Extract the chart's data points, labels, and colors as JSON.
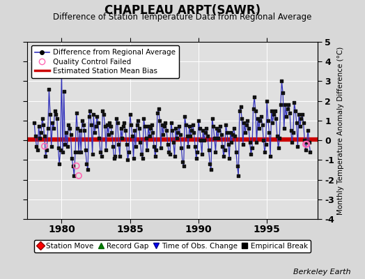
{
  "title": "CHAPLEAU ARPT(SAWR)",
  "subtitle": "Difference of Station Temperature Data from Regional Average",
  "ylabel_right": "Monthly Temperature Anomaly Difference (°C)",
  "watermark": "Berkeley Earth",
  "bias_value": 0.05,
  "ylim": [
    -4,
    5
  ],
  "xlim": [
    1977.5,
    1998.7
  ],
  "xticks": [
    1980,
    1985,
    1990,
    1995
  ],
  "yticks_right": [
    -4,
    -3,
    -2,
    -1,
    0,
    1,
    2,
    3,
    4,
    5
  ],
  "bg_color": "#d8d8d8",
  "plot_bg_color": "#e0e0e0",
  "line_color": "#3333bb",
  "dot_color": "#111111",
  "bias_color": "#cc0000",
  "qc_color": "#ff69b4",
  "grid_color": "#ffffff",
  "data": [
    [
      1978.0,
      0.9
    ],
    [
      1978.083,
      0.2
    ],
    [
      1978.167,
      -0.3
    ],
    [
      1978.25,
      -0.5
    ],
    [
      1978.333,
      0.7
    ],
    [
      1978.417,
      0.1
    ],
    [
      1978.5,
      0.4
    ],
    [
      1978.583,
      1.1
    ],
    [
      1978.667,
      0.8
    ],
    [
      1978.75,
      0.2
    ],
    [
      1978.833,
      -0.8
    ],
    [
      1978.917,
      -0.5
    ],
    [
      1979.0,
      0.6
    ],
    [
      1979.083,
      2.6
    ],
    [
      1979.167,
      1.3
    ],
    [
      1979.25,
      -0.3
    ],
    [
      1979.333,
      0.9
    ],
    [
      1979.417,
      0.6
    ],
    [
      1979.5,
      1.5
    ],
    [
      1979.583,
      1.3
    ],
    [
      1979.667,
      1.1
    ],
    [
      1979.75,
      -0.4
    ],
    [
      1979.833,
      -1.2
    ],
    [
      1979.917,
      -0.5
    ],
    [
      1980.0,
      3.5
    ],
    [
      1980.083,
      -0.6
    ],
    [
      1980.167,
      2.5
    ],
    [
      1980.25,
      -0.2
    ],
    [
      1980.333,
      0.4
    ],
    [
      1980.417,
      -0.3
    ],
    [
      1980.5,
      0.8
    ],
    [
      1980.583,
      0.6
    ],
    [
      1980.667,
      0.3
    ],
    [
      1980.75,
      -0.9
    ],
    [
      1980.833,
      -1.3
    ],
    [
      1980.917,
      -1.8
    ],
    [
      1981.0,
      -0.6
    ],
    [
      1981.083,
      1.4
    ],
    [
      1981.167,
      0.6
    ],
    [
      1981.25,
      -0.6
    ],
    [
      1981.333,
      0.5
    ],
    [
      1981.417,
      -0.6
    ],
    [
      1981.5,
      1.0
    ],
    [
      1981.583,
      0.8
    ],
    [
      1981.667,
      0.5
    ],
    [
      1981.75,
      -0.5
    ],
    [
      1981.833,
      -1.2
    ],
    [
      1981.917,
      -1.5
    ],
    [
      1982.0,
      1.2
    ],
    [
      1982.083,
      1.5
    ],
    [
      1982.167,
      0.8
    ],
    [
      1982.25,
      -0.7
    ],
    [
      1982.333,
      1.3
    ],
    [
      1982.417,
      0.4
    ],
    [
      1982.5,
      0.7
    ],
    [
      1982.583,
      1.2
    ],
    [
      1982.667,
      0.9
    ],
    [
      1982.75,
      0.1
    ],
    [
      1982.833,
      -0.6
    ],
    [
      1982.917,
      -0.8
    ],
    [
      1983.0,
      1.5
    ],
    [
      1983.083,
      1.3
    ],
    [
      1983.167,
      0.7
    ],
    [
      1983.25,
      -0.5
    ],
    [
      1983.333,
      0.8
    ],
    [
      1983.417,
      0.3
    ],
    [
      1983.5,
      0.9
    ],
    [
      1983.583,
      0.7
    ],
    [
      1983.667,
      0.4
    ],
    [
      1983.75,
      -0.3
    ],
    [
      1983.833,
      -0.9
    ],
    [
      1983.917,
      -0.8
    ],
    [
      1984.0,
      1.1
    ],
    [
      1984.083,
      0.9
    ],
    [
      1984.167,
      -0.2
    ],
    [
      1984.25,
      -0.8
    ],
    [
      1984.333,
      0.6
    ],
    [
      1984.417,
      0.1
    ],
    [
      1984.5,
      0.7
    ],
    [
      1984.583,
      0.9
    ],
    [
      1984.667,
      0.5
    ],
    [
      1984.75,
      -0.2
    ],
    [
      1984.833,
      -1.0
    ],
    [
      1984.917,
      -0.6
    ],
    [
      1985.0,
      1.3
    ],
    [
      1985.083,
      0.8
    ],
    [
      1985.167,
      0.2
    ],
    [
      1985.25,
      -0.9
    ],
    [
      1985.333,
      0.5
    ],
    [
      1985.417,
      -0.3
    ],
    [
      1985.5,
      0.8
    ],
    [
      1985.583,
      1.0
    ],
    [
      1985.667,
      0.6
    ],
    [
      1985.75,
      -0.1
    ],
    [
      1985.833,
      -0.7
    ],
    [
      1985.917,
      -0.9
    ],
    [
      1986.0,
      1.1
    ],
    [
      1986.083,
      0.7
    ],
    [
      1986.167,
      0.1
    ],
    [
      1986.25,
      -0.5
    ],
    [
      1986.333,
      0.7
    ],
    [
      1986.417,
      0.2
    ],
    [
      1986.5,
      0.6
    ],
    [
      1986.583,
      0.8
    ],
    [
      1986.667,
      0.4
    ],
    [
      1986.75,
      -0.3
    ],
    [
      1986.833,
      -0.8
    ],
    [
      1986.917,
      -0.5
    ],
    [
      1987.0,
      1.4
    ],
    [
      1987.083,
      1.6
    ],
    [
      1987.167,
      1.0
    ],
    [
      1987.25,
      -0.4
    ],
    [
      1987.333,
      0.8
    ],
    [
      1987.417,
      0.3
    ],
    [
      1987.5,
      0.7
    ],
    [
      1987.583,
      0.9
    ],
    [
      1987.667,
      0.5
    ],
    [
      1987.75,
      -0.2
    ],
    [
      1987.833,
      -0.6
    ],
    [
      1987.917,
      -0.7
    ],
    [
      1988.0,
      0.9
    ],
    [
      1988.083,
      0.5
    ],
    [
      1988.167,
      -0.1
    ],
    [
      1988.25,
      -0.8
    ],
    [
      1988.333,
      0.6
    ],
    [
      1988.417,
      0.1
    ],
    [
      1988.5,
      0.4
    ],
    [
      1988.583,
      0.7
    ],
    [
      1988.667,
      0.3
    ],
    [
      1988.75,
      -0.4
    ],
    [
      1988.833,
      -1.1
    ],
    [
      1988.917,
      -1.3
    ],
    [
      1989.0,
      1.2
    ],
    [
      1989.083,
      0.8
    ],
    [
      1989.167,
      0.2
    ],
    [
      1989.25,
      -0.3
    ],
    [
      1989.333,
      0.7
    ],
    [
      1989.417,
      0.2
    ],
    [
      1989.5,
      0.5
    ],
    [
      1989.583,
      0.8
    ],
    [
      1989.667,
      0.4
    ],
    [
      1989.75,
      -0.3
    ],
    [
      1989.833,
      -0.9
    ],
    [
      1989.917,
      -0.6
    ],
    [
      1990.0,
      1.0
    ],
    [
      1990.083,
      0.6
    ],
    [
      1990.167,
      0.0
    ],
    [
      1990.25,
      -0.7
    ],
    [
      1990.333,
      0.5
    ],
    [
      1990.417,
      0.0
    ],
    [
      1990.5,
      0.4
    ],
    [
      1990.583,
      0.6
    ],
    [
      1990.667,
      0.2
    ],
    [
      1990.75,
      -0.5
    ],
    [
      1990.833,
      -1.2
    ],
    [
      1990.917,
      -1.5
    ],
    [
      1991.0,
      1.1
    ],
    [
      1991.083,
      0.7
    ],
    [
      1991.167,
      0.1
    ],
    [
      1991.25,
      -0.6
    ],
    [
      1991.333,
      0.6
    ],
    [
      1991.417,
      0.1
    ],
    [
      1991.5,
      0.5
    ],
    [
      1991.583,
      0.7
    ],
    [
      1991.667,
      0.3
    ],
    [
      1991.75,
      -0.3
    ],
    [
      1991.833,
      -0.8
    ],
    [
      1991.917,
      -0.5
    ],
    [
      1992.0,
      0.8
    ],
    [
      1992.083,
      0.4
    ],
    [
      1992.167,
      -0.2
    ],
    [
      1992.25,
      -0.9
    ],
    [
      1992.333,
      0.4
    ],
    [
      1992.417,
      -0.1
    ],
    [
      1992.5,
      0.3
    ],
    [
      1992.583,
      0.6
    ],
    [
      1992.667,
      0.2
    ],
    [
      1992.75,
      -0.6
    ],
    [
      1992.833,
      -1.3
    ],
    [
      1992.917,
      -1.8
    ],
    [
      1993.0,
      1.5
    ],
    [
      1993.083,
      1.7
    ],
    [
      1993.167,
      1.1
    ],
    [
      1993.25,
      -0.2
    ],
    [
      1993.333,
      0.9
    ],
    [
      1993.417,
      0.4
    ],
    [
      1993.5,
      0.8
    ],
    [
      1993.583,
      1.0
    ],
    [
      1993.667,
      0.6
    ],
    [
      1993.75,
      -0.1
    ],
    [
      1993.833,
      -0.7
    ],
    [
      1993.917,
      -0.4
    ],
    [
      1994.0,
      1.6
    ],
    [
      1994.083,
      2.2
    ],
    [
      1994.167,
      1.5
    ],
    [
      1994.25,
      -0.1
    ],
    [
      1994.333,
      1.1
    ],
    [
      1994.417,
      0.6
    ],
    [
      1994.5,
      1.0
    ],
    [
      1994.583,
      1.2
    ],
    [
      1994.667,
      0.8
    ],
    [
      1994.75,
      0.0
    ],
    [
      1994.833,
      -0.6
    ],
    [
      1994.917,
      -0.2
    ],
    [
      1995.0,
      2.0
    ],
    [
      1995.083,
      1.0
    ],
    [
      1995.167,
      0.4
    ],
    [
      1995.25,
      -0.8
    ],
    [
      1995.333,
      1.5
    ],
    [
      1995.417,
      0.9
    ],
    [
      1995.5,
      1.3
    ],
    [
      1995.583,
      1.5
    ],
    [
      1995.667,
      1.1
    ],
    [
      1995.75,
      0.2
    ],
    [
      1995.833,
      -0.4
    ],
    [
      1995.917,
      0.1
    ],
    [
      1996.0,
      1.8
    ],
    [
      1996.083,
      3.0
    ],
    [
      1996.167,
      2.4
    ],
    [
      1996.25,
      0.6
    ],
    [
      1996.333,
      1.8
    ],
    [
      1996.417,
      1.2
    ],
    [
      1996.5,
      1.6
    ],
    [
      1996.583,
      1.8
    ],
    [
      1996.667,
      1.4
    ],
    [
      1996.75,
      0.5
    ],
    [
      1996.833,
      -0.1
    ],
    [
      1996.917,
      0.4
    ],
    [
      1997.0,
      1.9
    ],
    [
      1997.083,
      1.5
    ],
    [
      1997.167,
      0.9
    ],
    [
      1997.25,
      -0.3
    ],
    [
      1997.333,
      1.3
    ],
    [
      1997.417,
      0.7
    ],
    [
      1997.5,
      1.1
    ],
    [
      1997.583,
      1.3
    ],
    [
      1997.667,
      0.9
    ],
    [
      1997.75,
      0.0
    ],
    [
      1997.833,
      -0.5
    ],
    [
      1997.917,
      -0.1
    ],
    [
      1998.0,
      0.5
    ],
    [
      1998.083,
      -0.1
    ],
    [
      1998.167,
      -0.6
    ]
  ],
  "qc_points": [
    [
      1978.75,
      -0.3
    ],
    [
      1981.083,
      -1.3
    ],
    [
      1981.25,
      -1.8
    ],
    [
      1997.833,
      -0.2
    ],
    [
      1997.917,
      -0.2
    ]
  ],
  "legend1_labels": [
    "Difference from Regional Average",
    "Quality Control Failed",
    "Estimated Station Mean Bias"
  ],
  "legend2_labels": [
    "Station Move",
    "Record Gap",
    "Time of Obs. Change",
    "Empirical Break"
  ]
}
